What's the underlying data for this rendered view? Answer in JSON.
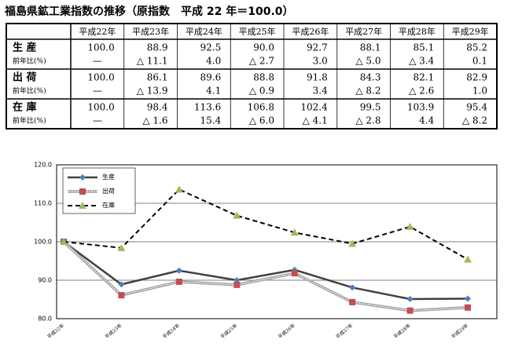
{
  "title": "福島県鉱工業指数の推移（原指数　平成 22 年＝100.0）",
  "table": {
    "columns": [
      "平成22年",
      "平成23年",
      "平成24年",
      "平成25年",
      "平成26年",
      "平成27年",
      "平成28年",
      "平成29年"
    ],
    "rows": [
      {
        "label": "生 産",
        "sub_label": "前年比(%)",
        "values": [
          "100.0",
          "88.9",
          "92.5",
          "90.0",
          "92.7",
          "88.1",
          "85.1",
          "85.2"
        ],
        "yoy": [
          "—",
          "△ 11.1",
          "4.0",
          "△ 2.7",
          "3.0",
          "△ 5.0",
          "△ 3.4",
          "0.1"
        ]
      },
      {
        "label": "出 荷",
        "sub_label": "前年比(%)",
        "values": [
          "100.0",
          "86.1",
          "89.6",
          "88.8",
          "91.8",
          "84.3",
          "82.1",
          "82.9"
        ],
        "yoy": [
          "—",
          "△ 13.9",
          "4.1",
          "△ 0.9",
          "3.4",
          "△ 8.2",
          "△ 2.6",
          "1.0"
        ]
      },
      {
        "label": "在 庫",
        "sub_label": "前年比(%)",
        "values": [
          "100.0",
          "98.4",
          "113.6",
          "106.8",
          "102.4",
          "99.5",
          "103.9",
          "95.4"
        ],
        "yoy": [
          "—",
          "△ 1.6",
          "15.4",
          "△ 6.0",
          "△ 4.1",
          "△ 2.8",
          "4.4",
          "△ 8.2"
        ]
      }
    ]
  },
  "chart_data": {
    "type": "line",
    "categories": [
      "平成22年",
      "平成23年",
      "平成24年",
      "平成25年",
      "平成26年",
      "平成27年",
      "平成28年",
      "平成29年"
    ],
    "series": [
      {
        "name": "生産",
        "color": "#404040",
        "marker": "diamond",
        "marker_color": "#4a7fc1",
        "line_style": "solid",
        "values": [
          100.0,
          88.9,
          92.5,
          90.0,
          92.7,
          88.1,
          85.1,
          85.2
        ]
      },
      {
        "name": "出荷",
        "color": "#999999",
        "marker": "square",
        "marker_color": "#c0504d",
        "line_style": "double",
        "values": [
          100.0,
          86.1,
          89.6,
          88.8,
          91.8,
          84.3,
          82.1,
          82.9
        ]
      },
      {
        "name": "在庫",
        "color": "#000000",
        "marker": "triangle",
        "marker_color": "#9bbb59",
        "line_style": "dashed",
        "values": [
          100.0,
          98.4,
          113.6,
          106.8,
          102.4,
          99.5,
          103.9,
          95.4
        ]
      }
    ],
    "ylim": [
      80,
      120
    ],
    "yticks": [
      {
        "value": 80,
        "label": "80.0"
      },
      {
        "value": 90,
        "label": "90.0"
      },
      {
        "value": 100,
        "label": "100.0"
      },
      {
        "value": 110,
        "label": "110.0"
      },
      {
        "value": 120,
        "label": "120.0"
      }
    ],
    "grid": true
  }
}
